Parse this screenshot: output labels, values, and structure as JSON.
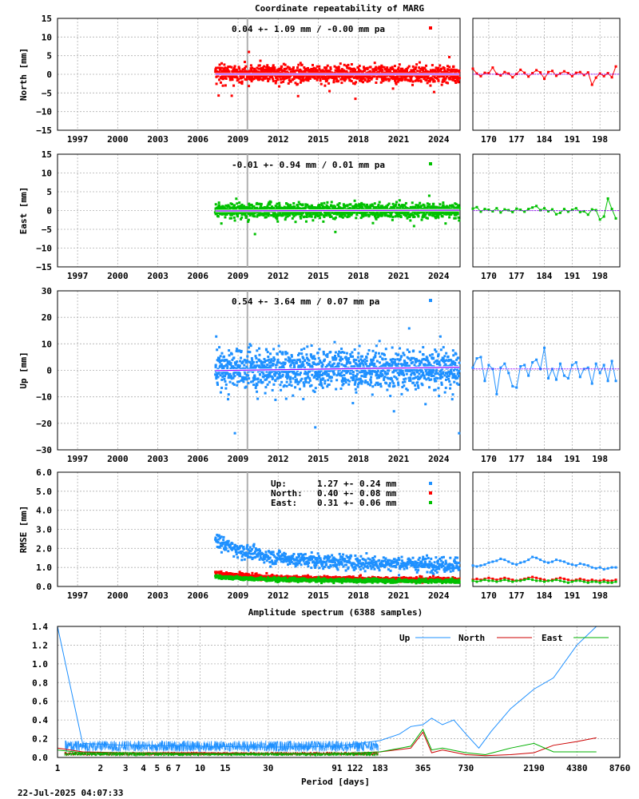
{
  "page": {
    "title": "Coordinate repeatability of MARG",
    "timestamp": "22-Jul-2025 04:07:33"
  },
  "colors": {
    "north": "#ff0000",
    "east": "#00c000",
    "up": "#1e90ff",
    "trend": "#9000ff",
    "marker": "#b0b0b0"
  },
  "chart_data": [
    {
      "type": "scatter",
      "panel": "north",
      "ylabel": "North [mm]",
      "annotation": "0.04 +- 1.09 mm / -0.00 mm pa",
      "color": "#ff0000",
      "ylim": [
        -15,
        15
      ],
      "yticks": [
        "15",
        "10",
        "5",
        "0",
        "−5",
        "−10",
        "−15"
      ],
      "xlim": [
        1995.5,
        2025.6
      ],
      "xticks": [
        "1997",
        "2000",
        "2003",
        "2006",
        "2009",
        "2012",
        "2015",
        "2018",
        "2021",
        "2024"
      ],
      "data_start": 2007.3,
      "data_end": 2025.55,
      "vertical_marker": 2009.7,
      "mean": 0.04,
      "stdev": 1.09,
      "trend_mm_pa": -0.0,
      "zoom": {
        "xticks": [
          "170",
          "177",
          "184",
          "191",
          "198"
        ],
        "xlim": [
          166,
          203
        ],
        "values": [
          1.5,
          0.2,
          -0.5,
          0.4,
          0.3,
          1.8,
          0.1,
          -0.3,
          0.6,
          0.2,
          -0.8,
          0.1,
          1.2,
          0.4,
          -0.6,
          0.3,
          1.1,
          0.5,
          -1.2,
          0.6,
          0.9,
          -0.4,
          0.2,
          0.8,
          0.3,
          -0.5,
          0.4,
          0.6,
          -0.2,
          0.5,
          -2.8,
          -0.9,
          0.2,
          -0.5,
          0.3,
          -0.8,
          2.1
        ]
      }
    },
    {
      "type": "scatter",
      "panel": "east",
      "ylabel": "East [mm]",
      "annotation": "-0.01 +- 0.94 mm /  0.01 mm pa",
      "color": "#00c000",
      "ylim": [
        -15,
        15
      ],
      "yticks": [
        "15",
        "10",
        "5",
        "0",
        "−5",
        "−10",
        "−15"
      ],
      "xlim": [
        1995.5,
        2025.6
      ],
      "xticks": [
        "1997",
        "2000",
        "2003",
        "2006",
        "2009",
        "2012",
        "2015",
        "2018",
        "2021",
        "2024"
      ],
      "data_start": 2007.3,
      "data_end": 2025.55,
      "vertical_marker": 2009.7,
      "mean": -0.01,
      "stdev": 0.94,
      "trend_mm_pa": 0.01,
      "zoom": {
        "xticks": [
          "170",
          "177",
          "184",
          "191",
          "198"
        ],
        "xlim": [
          166,
          203
        ],
        "values": [
          0.5,
          0.9,
          -0.3,
          0.4,
          0.2,
          -0.2,
          0.6,
          -0.5,
          0.3,
          0.1,
          -0.4,
          0.5,
          0.2,
          -0.3,
          0.4,
          0.8,
          1.2,
          0.1,
          0.6,
          -0.2,
          0.3,
          -1.0,
          -0.6,
          0.4,
          -0.3,
          0.2,
          0.6,
          -0.4,
          -0.2,
          -1.1,
          0.3,
          0.1,
          -2.4,
          -1.6,
          3.2,
          0.4,
          -2.1
        ]
      }
    },
    {
      "type": "scatter",
      "panel": "up",
      "ylabel": "Up [mm]",
      "annotation": "0.54 +- 3.64 mm /  0.07 mm pa",
      "color": "#1e90ff",
      "ylim": [
        -30,
        30
      ],
      "yticks": [
        "30",
        "20",
        "10",
        "0",
        "−10",
        "−20",
        "−30"
      ],
      "xlim": [
        1995.5,
        2025.6
      ],
      "xticks": [
        "1997",
        "2000",
        "2003",
        "2006",
        "2009",
        "2012",
        "2015",
        "2018",
        "2021",
        "2024"
      ],
      "data_start": 2007.3,
      "data_end": 2025.55,
      "vertical_marker": 2009.7,
      "mean": 0.54,
      "stdev": 3.64,
      "trend_mm_pa": 0.07,
      "zoom": {
        "xticks": [
          "170",
          "177",
          "184",
          "191",
          "198"
        ],
        "xlim": [
          166,
          203
        ],
        "values": [
          1.0,
          4.5,
          5.0,
          -4.0,
          2.0,
          0.5,
          -9.0,
          1.0,
          2.5,
          -1.0,
          -6.0,
          -6.5,
          1.5,
          2.0,
          -2.0,
          3.0,
          4.0,
          0.5,
          8.5,
          -3.0,
          0.5,
          -3.5,
          2.5,
          -2.0,
          -3.0,
          2.0,
          3.0,
          -2.5,
          0.5,
          1.0,
          -5.0,
          2.5,
          -1.0,
          2.0,
          -4.0,
          3.5,
          -4.0
        ]
      }
    },
    {
      "type": "scatter",
      "panel": "rmse",
      "ylabel": "RMSE [mm]",
      "ylim": [
        0,
        6
      ],
      "yticks": [
        "6.0",
        "5.0",
        "4.0",
        "3.0",
        "2.0",
        "1.0",
        "0.0"
      ],
      "xlim": [
        1995.5,
        2025.6
      ],
      "xticks": [
        "1997",
        "2000",
        "2003",
        "2006",
        "2009",
        "2012",
        "2015",
        "2018",
        "2021",
        "2024"
      ],
      "data_start": 2007.3,
      "data_end": 2025.55,
      "vertical_marker": 2009.7,
      "legend": [
        {
          "label": "Up:",
          "value": "1.27 +- 0.24 mm",
          "color": "#1e90ff"
        },
        {
          "label": "North:",
          "value": "0.40 +- 0.08 mm",
          "color": "#ff0000"
        },
        {
          "label": "East:",
          "value": "0.31 +- 0.06 mm",
          "color": "#00c000"
        }
      ],
      "zoom": {
        "xticks": [
          "170",
          "177",
          "184",
          "191",
          "198"
        ],
        "xlim": [
          166,
          203
        ],
        "up": [
          1.1,
          1.05,
          1.1,
          1.15,
          1.25,
          1.3,
          1.35,
          1.45,
          1.4,
          1.3,
          1.2,
          1.15,
          1.25,
          1.3,
          1.4,
          1.55,
          1.5,
          1.4,
          1.3,
          1.25,
          1.3,
          1.4,
          1.35,
          1.3,
          1.2,
          1.15,
          1.1,
          1.2,
          1.15,
          1.1,
          1.0,
          0.95,
          1.0,
          0.9,
          0.95,
          1.0,
          1.0
        ],
        "north": [
          0.35,
          0.4,
          0.35,
          0.4,
          0.45,
          0.4,
          0.35,
          0.4,
          0.45,
          0.4,
          0.35,
          0.3,
          0.35,
          0.4,
          0.45,
          0.5,
          0.45,
          0.4,
          0.35,
          0.3,
          0.35,
          0.4,
          0.45,
          0.4,
          0.35,
          0.3,
          0.35,
          0.4,
          0.35,
          0.3,
          0.35,
          0.3,
          0.3,
          0.35,
          0.3,
          0.3,
          0.35
        ],
        "east": [
          0.3,
          0.25,
          0.3,
          0.35,
          0.3,
          0.3,
          0.25,
          0.3,
          0.35,
          0.3,
          0.25,
          0.3,
          0.3,
          0.35,
          0.4,
          0.35,
          0.3,
          0.3,
          0.25,
          0.3,
          0.3,
          0.35,
          0.3,
          0.25,
          0.2,
          0.25,
          0.3,
          0.3,
          0.25,
          0.2,
          0.25,
          0.25,
          0.2,
          0.25,
          0.2,
          0.2,
          0.25
        ]
      }
    },
    {
      "type": "line",
      "panel": "spectrum",
      "title": "Amplitude spectrum (6388 samples)",
      "xlabel": "Period [days]",
      "ylim": [
        0,
        1.4
      ],
      "yticks": [
        "1.4",
        "1.2",
        "1.0",
        "0.8",
        "0.6",
        "0.4",
        "0.2",
        "0.0"
      ],
      "xscale": "log",
      "xlim": [
        1,
        8760
      ],
      "xticks": [
        "1",
        "2",
        "3",
        "4",
        "5",
        "6",
        "7",
        "10",
        "15",
        "30",
        "91",
        "122",
        "183",
        "365",
        "730",
        "2190",
        "4380",
        "8760"
      ],
      "xtick_values": [
        1,
        2,
        3,
        4,
        5,
        6,
        7,
        10,
        15,
        30,
        91,
        122,
        183,
        365,
        730,
        2190,
        4380,
        8760
      ],
      "legend_position": "top-right",
      "series": [
        {
          "name": "Up",
          "color": "#1e90ff",
          "x": [
            1,
            1.5,
            3,
            10,
            30,
            91,
            183,
            250,
            300,
            365,
            420,
            500,
            600,
            730,
            900,
            1100,
            1500,
            2190,
            3000,
            4380,
            6000
          ],
          "y": [
            1.4,
            0.15,
            0.13,
            0.12,
            0.11,
            0.12,
            0.18,
            0.25,
            0.33,
            0.35,
            0.42,
            0.35,
            0.4,
            0.25,
            0.1,
            0.28,
            0.52,
            0.73,
            0.85,
            1.2,
            1.45
          ]
        },
        {
          "name": "North",
          "color": "#cc0000",
          "x": [
            1,
            1.5,
            3,
            10,
            30,
            91,
            183,
            300,
            365,
            420,
            500,
            730,
            1000,
            1500,
            2190,
            3000,
            4380,
            6000
          ],
          "y": [
            0.1,
            0.06,
            0.05,
            0.05,
            0.04,
            0.04,
            0.06,
            0.1,
            0.27,
            0.05,
            0.08,
            0.03,
            0.02,
            0.03,
            0.05,
            0.13,
            0.17,
            0.21
          ]
        },
        {
          "name": "East",
          "color": "#00b000",
          "x": [
            1,
            1.5,
            3,
            10,
            30,
            91,
            183,
            300,
            365,
            420,
            500,
            730,
            1000,
            1500,
            2190,
            3000,
            4380,
            6000
          ],
          "y": [
            0.08,
            0.05,
            0.05,
            0.04,
            0.04,
            0.04,
            0.06,
            0.12,
            0.3,
            0.08,
            0.1,
            0.05,
            0.03,
            0.1,
            0.15,
            0.06,
            0.06,
            0.06
          ]
        }
      ]
    }
  ]
}
